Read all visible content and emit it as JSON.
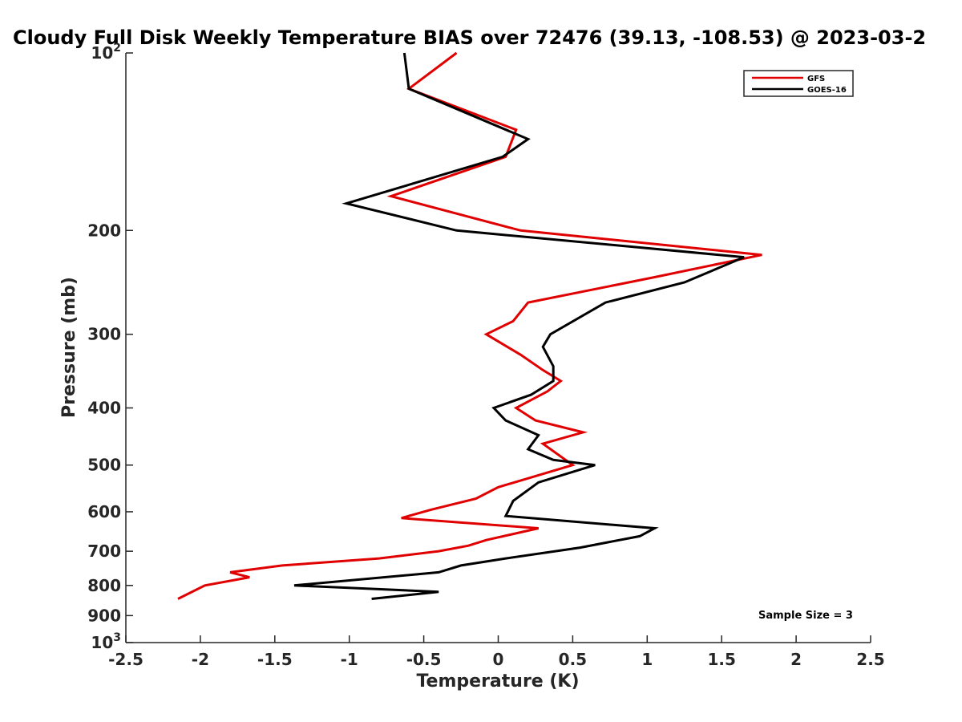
{
  "chart_data": {
    "type": "line",
    "title": "Cloudy Full Disk Weekly Temperature BIAS over 72476 (39.13, -108.53) @ 2023-03-2",
    "xlabel": "Temperature (K)",
    "ylabel": "Pressure (mb)",
    "xlim": [
      -2.5,
      2.5
    ],
    "ylim": [
      100,
      1000
    ],
    "y_scale": "log",
    "y_reversed": true,
    "x_ticks": [
      "-2.5",
      "-2",
      "-1.5",
      "-1",
      "-0.5",
      "0",
      "0.5",
      "1",
      "1.5",
      "2",
      "2.5"
    ],
    "y_ticks": [
      {
        "value": 100,
        "base": "10",
        "exp": "2"
      },
      {
        "value": 200,
        "label": "200"
      },
      {
        "value": 300,
        "label": "300"
      },
      {
        "value": 400,
        "label": "400"
      },
      {
        "value": 500,
        "label": "500"
      },
      {
        "value": 600,
        "label": "600"
      },
      {
        "value": 700,
        "label": "700"
      },
      {
        "value": 800,
        "label": "800"
      },
      {
        "value": 900,
        "label": "900"
      },
      {
        "value": 1000,
        "base": "10",
        "exp": "3"
      }
    ],
    "grid": false,
    "legend_position": "top-right",
    "series": [
      {
        "name": "GFS",
        "color": "#e00000",
        "points": [
          [
            -0.28,
            100
          ],
          [
            -0.6,
            115
          ],
          [
            0.12,
            135
          ],
          [
            0.05,
            150
          ],
          [
            -0.72,
            175
          ],
          [
            0.15,
            200
          ],
          [
            1.77,
            220
          ],
          [
            1.05,
            240
          ],
          [
            0.2,
            265
          ],
          [
            0.1,
            285
          ],
          [
            -0.08,
            300
          ],
          [
            0.15,
            325
          ],
          [
            0.3,
            345
          ],
          [
            0.42,
            360
          ],
          [
            0.33,
            375
          ],
          [
            0.12,
            400
          ],
          [
            0.25,
            420
          ],
          [
            0.57,
            440
          ],
          [
            0.3,
            460
          ],
          [
            0.5,
            500
          ],
          [
            0.0,
            545
          ],
          [
            -0.15,
            570
          ],
          [
            -0.45,
            595
          ],
          [
            -0.65,
            615
          ],
          [
            0.27,
            640
          ],
          [
            -0.08,
            670
          ],
          [
            -0.2,
            685
          ],
          [
            -0.4,
            700
          ],
          [
            -0.8,
            720
          ],
          [
            -1.45,
            740
          ],
          [
            -1.8,
            760
          ],
          [
            -1.67,
            775
          ],
          [
            -1.97,
            800
          ],
          [
            -2.15,
            843
          ]
        ]
      },
      {
        "name": "GOES-16",
        "color": "#000000",
        "points": [
          [
            -0.63,
            100
          ],
          [
            -0.6,
            115
          ],
          [
            0.2,
            140
          ],
          [
            0.03,
            150
          ],
          [
            -1.02,
            180
          ],
          [
            -0.28,
            200
          ],
          [
            1.65,
            222
          ],
          [
            1.25,
            245
          ],
          [
            0.72,
            265
          ],
          [
            0.35,
            300
          ],
          [
            0.3,
            315
          ],
          [
            0.37,
            340
          ],
          [
            0.37,
            360
          ],
          [
            0.22,
            380
          ],
          [
            -0.03,
            400
          ],
          [
            0.05,
            420
          ],
          [
            0.27,
            445
          ],
          [
            0.2,
            470
          ],
          [
            0.37,
            490
          ],
          [
            0.65,
            500
          ],
          [
            0.27,
            535
          ],
          [
            0.1,
            575
          ],
          [
            0.05,
            610
          ],
          [
            1.05,
            640
          ],
          [
            0.95,
            660
          ],
          [
            0.55,
            690
          ],
          [
            0.05,
            720
          ],
          [
            -0.25,
            740
          ],
          [
            -0.4,
            760
          ],
          [
            -1.37,
            800
          ],
          [
            -0.4,
            820
          ],
          [
            -0.85,
            843
          ]
        ]
      }
    ],
    "annotation": "Sample Size = 3"
  }
}
